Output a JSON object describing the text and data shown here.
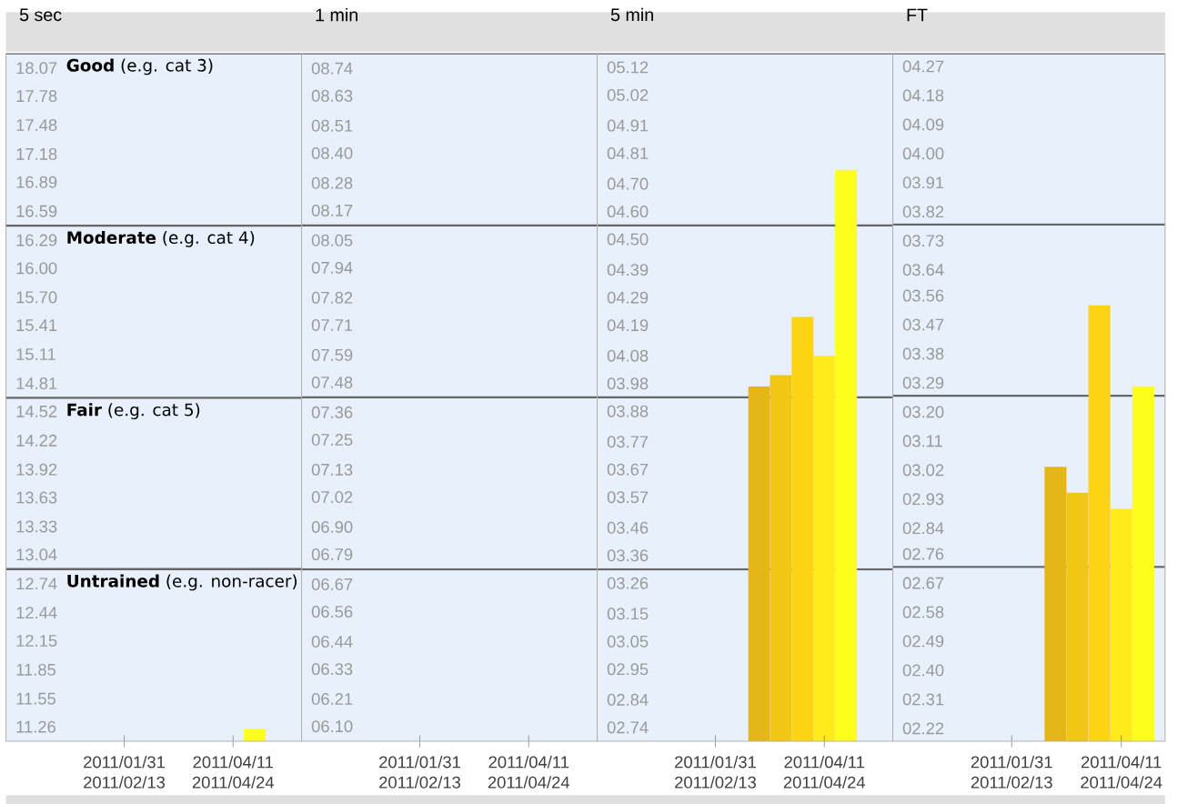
{
  "chart_data": [
    {
      "type": "bar",
      "title": "5 sec",
      "x": [
        "2011-04-25"
      ],
      "values": [
        11.24
      ],
      "colors": [
        "#ffff1e"
      ],
      "xlim": [
        "2010-11-16",
        "2011-05-25"
      ],
      "xticks": [
        {
          "value": "2011-01-31",
          "label": "2011/01/31 2011/02/13"
        },
        {
          "value": "2011-04-11",
          "label": "2011/04/11 2011/04/24"
        }
      ],
      "ylim": [
        11.11,
        18.22
      ],
      "yticks": [
        18.07,
        17.78,
        17.48,
        17.18,
        16.89,
        16.59,
        16.29,
        {
          "value": 16.0,
          "label": "16.00"
        },
        {
          "value": 15.7,
          "label": "15.70"
        },
        15.41,
        15.11,
        14.81,
        14.52,
        14.22,
        13.92,
        13.63,
        13.33,
        13.04,
        12.74,
        12.44,
        12.15,
        11.85,
        11.55,
        11.26
      ],
      "bands": [
        {
          "axis": "y",
          "from": 16.44,
          "to": 18.22,
          "label": "**Good** (e.g. cat 3)",
          "color": "#e8f0fc"
        },
        {
          "axis": "y",
          "from": 14.66,
          "to": 16.44,
          "label": "**Moderate** (e.g. cat 4)",
          "color": "#e8f0fc"
        },
        {
          "axis": "y",
          "from": 12.89,
          "to": 14.66,
          "label": "**Fair** (e.g. cat 5)",
          "color": "#e8f0fc"
        },
        {
          "axis": "y",
          "from": 11.11,
          "to": 12.89,
          "label": "**Untrained** (e.g. non-racer)",
          "color": "#e8f0fc"
        }
      ]
    },
    {
      "type": "bar",
      "title": "1 min",
      "xlim": [
        "2010-11-16",
        "2011-05-25"
      ],
      "xticks": [
        {
          "value": "2011-01-31",
          "label": "2011/01/31 2011/02/13"
        },
        {
          "value": "2011-04-11",
          "label": "2011/04/11 2011/04/24"
        }
      ],
      "ylim": [
        6.04,
        8.8
      ],
      "yticks": [
        {
          "value": 8.74,
          "label": "08.74"
        },
        {
          "value": 8.63,
          "label": "08.63"
        },
        {
          "value": 8.51,
          "label": "08.51"
        },
        {
          "value": 8.4,
          "label": "08.40"
        },
        {
          "value": 8.28,
          "label": "08.28"
        },
        {
          "value": 8.17,
          "label": "08.17"
        },
        {
          "value": 8.05,
          "label": "08.05"
        },
        {
          "value": 7.94,
          "label": "07.94"
        },
        {
          "value": 7.82,
          "label": "07.82"
        },
        {
          "value": 7.71,
          "label": "07.71"
        },
        {
          "value": 7.59,
          "label": "07.59"
        },
        {
          "value": 7.48,
          "label": "07.48"
        },
        {
          "value": 7.36,
          "label": "07.36"
        },
        {
          "value": 7.25,
          "label": "07.25"
        },
        {
          "value": 7.13,
          "label": "07.13"
        },
        {
          "value": 7.02,
          "label": "07.02"
        },
        {
          "value": 6.9,
          "label": "06.90"
        },
        {
          "value": 6.79,
          "label": "06.79"
        },
        {
          "value": 6.67,
          "label": "06.67"
        },
        {
          "value": 6.56,
          "label": "06.56"
        },
        {
          "value": 6.44,
          "label": "06.44"
        },
        {
          "value": 6.33,
          "label": "06.33"
        },
        {
          "value": 6.21,
          "label": "06.21"
        },
        {
          "value": 6.1,
          "label": "06.10"
        }
      ],
      "bands": [
        {
          "axis": "y",
          "from": 8.11,
          "to": 8.8,
          "color": "#e8f0fc"
        },
        {
          "axis": "y",
          "from": 7.42,
          "to": 8.11,
          "color": "#e8f0fc"
        },
        {
          "axis": "y",
          "from": 6.73,
          "to": 7.42,
          "color": "#e8f0fc"
        },
        {
          "axis": "y",
          "from": 6.04,
          "to": 6.73,
          "color": "#e8f0fc"
        }
      ]
    },
    {
      "type": "bar",
      "title": "5 min",
      "x": [
        "2011-02-28",
        "2011-03-14",
        "2011-03-28",
        "2011-04-11",
        "2011-04-25"
      ],
      "values": [
        3.97,
        4.01,
        4.22,
        4.08,
        4.75
      ],
      "colors": [
        "#e4b618",
        "#f2c615",
        "#fdd414",
        "#ffea1c",
        "#ffff1e"
      ],
      "xlim": [
        "2010-11-16",
        "2011-05-25"
      ],
      "xticks": [
        {
          "value": "2011-01-31",
          "label": "2011/01/31 2011/02/13"
        },
        {
          "value": "2011-04-11",
          "label": "2011/04/11 2011/04/24"
        }
      ],
      "ylim": [
        2.69,
        5.17
      ],
      "yticks": [
        {
          "value": 5.12,
          "label": "05.12"
        },
        {
          "value": 5.02,
          "label": "05.02"
        },
        {
          "value": 4.91,
          "label": "04.91"
        },
        {
          "value": 4.81,
          "label": "04.81"
        },
        {
          "value": 4.7,
          "label": "04.70"
        },
        {
          "value": 4.6,
          "label": "04.60"
        },
        {
          "value": 4.5,
          "label": "04.50"
        },
        {
          "value": 4.39,
          "label": "04.39"
        },
        {
          "value": 4.29,
          "label": "04.29"
        },
        {
          "value": 4.19,
          "label": "04.19"
        },
        {
          "value": 4.08,
          "label": "04.08"
        },
        {
          "value": 3.98,
          "label": "03.98"
        },
        {
          "value": 3.88,
          "label": "03.88"
        },
        {
          "value": 3.77,
          "label": "03.77"
        },
        {
          "value": 3.67,
          "label": "03.67"
        },
        {
          "value": 3.57,
          "label": "03.57"
        },
        {
          "value": 3.46,
          "label": "03.46"
        },
        {
          "value": 3.36,
          "label": "03.36"
        },
        {
          "value": 3.26,
          "label": "03.26"
        },
        {
          "value": 3.15,
          "label": "03.15"
        },
        {
          "value": 3.05,
          "label": "03.05"
        },
        {
          "value": 2.95,
          "label": "02.95"
        },
        {
          "value": 2.84,
          "label": "02.84"
        },
        {
          "value": 2.74,
          "label": "02.74"
        }
      ],
      "bands": [
        {
          "axis": "y",
          "from": 4.55,
          "to": 5.17,
          "color": "#e8f0fc"
        },
        {
          "axis": "y",
          "from": 3.93,
          "to": 4.55,
          "color": "#e8f0fc"
        },
        {
          "axis": "y",
          "from": 3.31,
          "to": 3.93,
          "color": "#e8f0fc"
        },
        {
          "axis": "y",
          "from": 2.69,
          "to": 3.31,
          "color": "#e8f0fc"
        }
      ]
    },
    {
      "type": "bar",
      "title": "FT",
      "x": [
        "2011-02-28",
        "2011-03-14",
        "2011-03-28",
        "2011-04-11",
        "2011-04-25"
      ],
      "values": [
        3.03,
        2.95,
        3.53,
        2.9,
        3.28
      ],
      "colors": [
        "#e4b618",
        "#f2c615",
        "#fdd414",
        "#ffea1c",
        "#ffff1e"
      ],
      "xlim": [
        "2010-11-16",
        "2011-05-09"
      ],
      "xticks": [
        {
          "value": "2011-01-31",
          "label": "2011/01/31 2011/02/13"
        },
        {
          "value": "2011-04-11",
          "label": "2011/04/11 2011/04/24"
        }
      ],
      "ylim": [
        2.18,
        4.31
      ],
      "yticks": [
        {
          "value": 4.27,
          "label": "04.27"
        },
        {
          "value": 4.18,
          "label": "04.18"
        },
        {
          "value": 4.09,
          "label": "04.09"
        },
        {
          "value": 4.0,
          "label": "04.00"
        },
        {
          "value": 3.91,
          "label": "03.91"
        },
        {
          "value": 3.82,
          "label": "03.82"
        },
        {
          "value": 3.73,
          "label": "03.73"
        },
        {
          "value": 3.64,
          "label": "03.64"
        },
        {
          "value": 3.56,
          "label": "03.56"
        },
        {
          "value": 3.47,
          "label": "03.47"
        },
        {
          "value": 3.38,
          "label": "03.38"
        },
        {
          "value": 3.29,
          "label": "03.29"
        },
        {
          "value": 3.2,
          "label": "03.20"
        },
        {
          "value": 3.11,
          "label": "03.11"
        },
        {
          "value": 3.02,
          "label": "03.02"
        },
        {
          "value": 2.93,
          "label": "02.93"
        },
        {
          "value": 2.84,
          "label": "02.84"
        },
        {
          "value": 2.76,
          "label": "02.76"
        },
        {
          "value": 2.67,
          "label": "02.67"
        },
        {
          "value": 2.58,
          "label": "02.58"
        },
        {
          "value": 2.49,
          "label": "02.49"
        },
        {
          "value": 2.4,
          "label": "02.40"
        },
        {
          "value": 2.31,
          "label": "02.31"
        },
        {
          "value": 2.22,
          "label": "02.22"
        }
      ],
      "bands": [
        {
          "axis": "y",
          "from": 3.78,
          "to": 4.31,
          "color": "#e8f0fc"
        },
        {
          "axis": "y",
          "from": 3.25,
          "to": 3.78,
          "color": "#e8f0fc"
        },
        {
          "axis": "y",
          "from": 2.72,
          "to": 3.25,
          "color": "#e8f0fc"
        },
        {
          "axis": "y",
          "from": 2.18,
          "to": 2.72,
          "color": "#e8f0fc"
        }
      ]
    }
  ]
}
